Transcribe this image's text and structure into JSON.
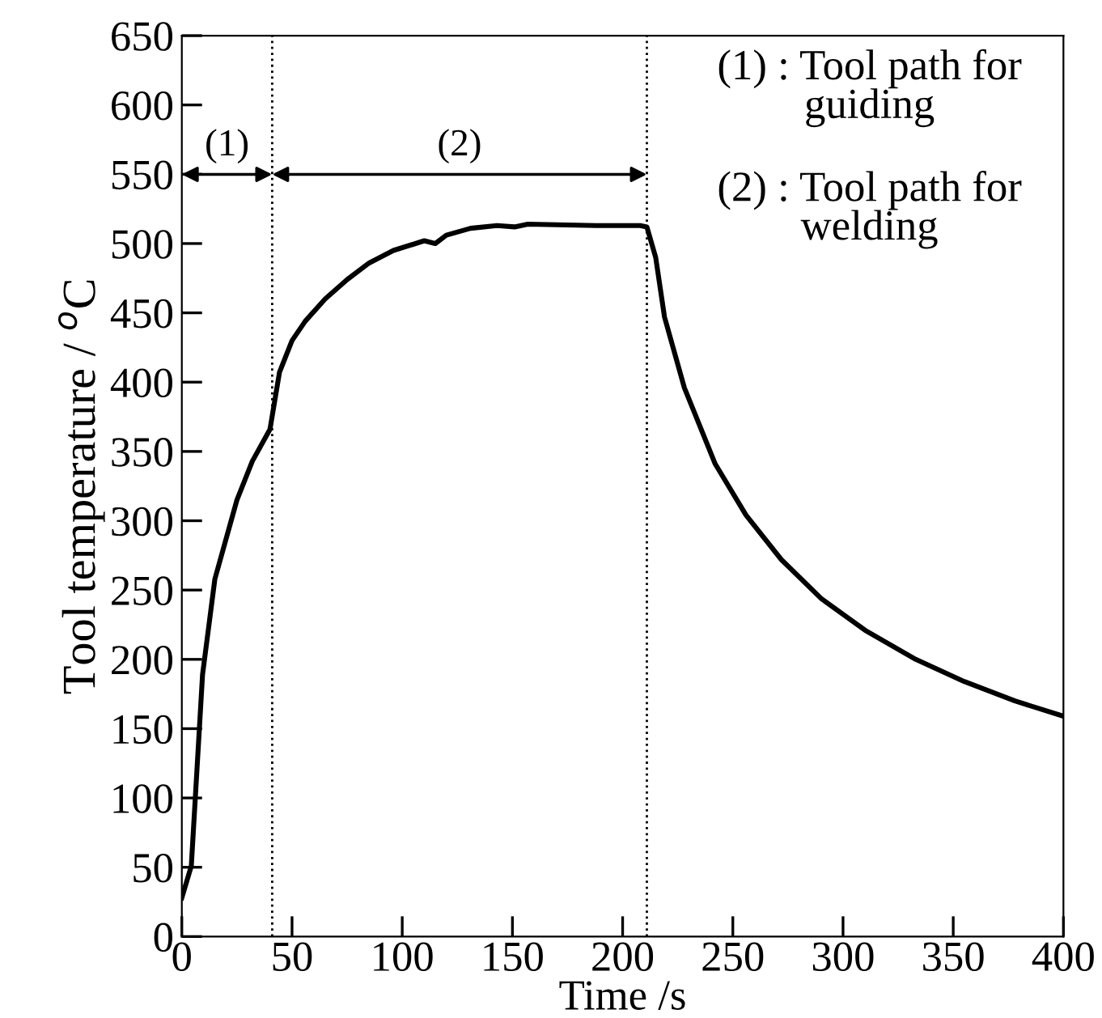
{
  "chart_data": {
    "type": "line",
    "xlabel": "Time /s",
    "ylabel": "Tool temperature / $^{o}$C",
    "x": [
      0,
      4.3,
      9.4,
      15,
      25,
      32,
      40,
      44.3,
      50,
      56,
      65,
      75,
      85,
      96,
      110,
      115,
      120,
      131,
      143,
      151,
      157,
      188,
      208,
      211,
      215,
      219,
      228,
      242,
      256,
      272,
      290,
      310,
      333,
      355,
      378,
      400
    ],
    "series": [
      {
        "color": "#000000",
        "values": [
          28,
          51,
          189,
          258,
          315,
          343,
          366,
          407,
          430,
          444,
          460,
          474,
          486,
          495,
          502,
          500,
          506,
          511,
          513,
          512,
          514,
          513,
          513,
          512,
          490,
          447,
          396,
          341,
          304,
          272,
          244,
          221,
          200,
          184,
          170,
          159
        ]
      }
    ],
    "xlim": [
      0,
      400
    ],
    "xticks": [
      0,
      50,
      100,
      150,
      200,
      250,
      300,
      350,
      400
    ],
    "ylim": [
      0,
      650
    ],
    "yticks": [
      0,
      50,
      100,
      150,
      200,
      250,
      300,
      350,
      400,
      450,
      500,
      550,
      600,
      650
    ],
    "grid": false,
    "legend": false,
    "marker": "none",
    "line_style": "solid",
    "ref_lines": [
      {
        "axis": "x",
        "value": 41,
        "color": "#000000",
        "line_style": "dotted"
      },
      {
        "axis": "x",
        "value": 211,
        "color": "#000000",
        "line_style": "dotted"
      }
    ],
    "annotations": [
      "(1)",
      "(2)",
      "(1) : Tool path for\nguiding",
      "(2) : Tool path for\nwelding"
    ]
  }
}
